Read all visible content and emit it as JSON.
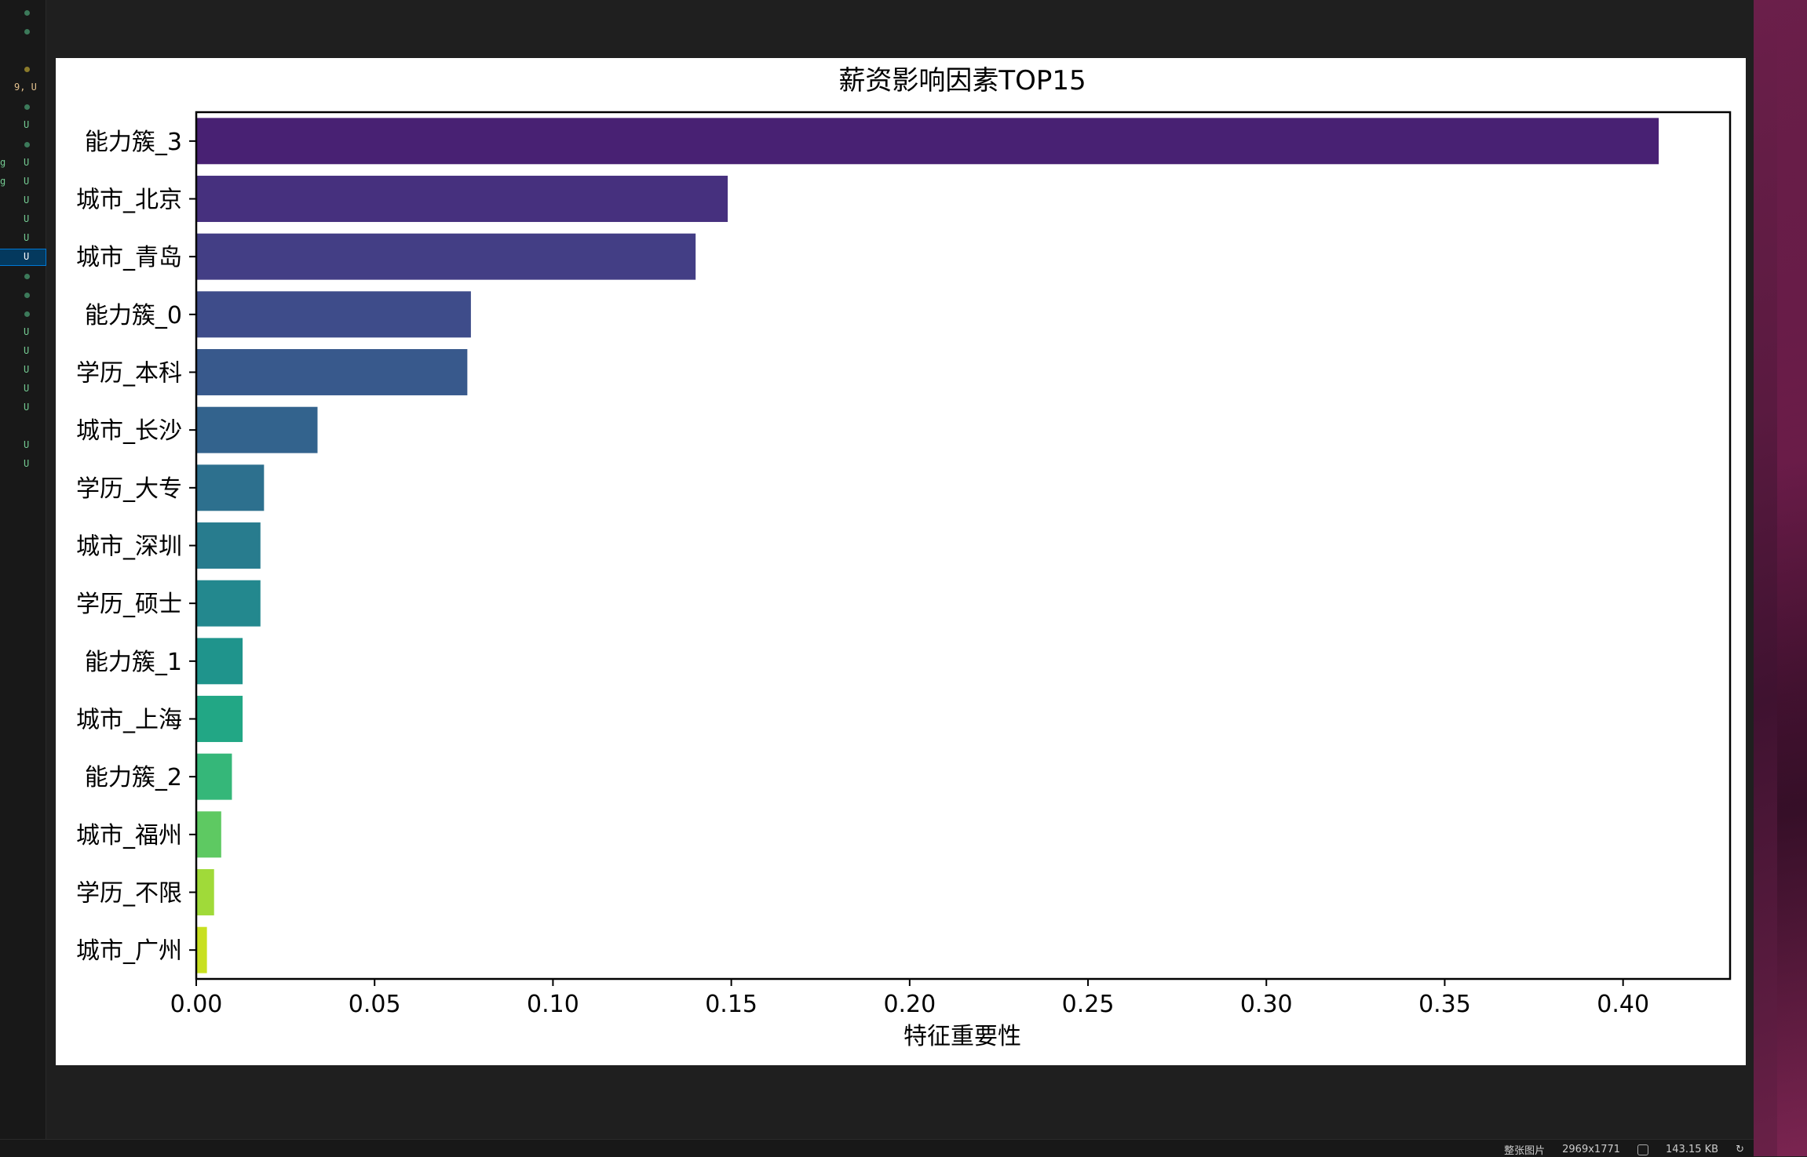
{
  "window": {
    "status_bar": {
      "view_mode": "整张图片",
      "dimensions": "2969x1771",
      "file_size": "143.15 KB"
    }
  },
  "colors": {
    "background": "#1f1f1f",
    "figure_background": "#ffffff",
    "palette": [
      "#482173",
      "#46307e",
      "#433e85",
      "#3e4c8a",
      "#38598c",
      "#33638d",
      "#2d708e",
      "#287c8e",
      "#23888e",
      "#1f948c",
      "#22a785",
      "#35b779",
      "#5ec962",
      "#a0da39",
      "#c8e020"
    ]
  },
  "chart_data": {
    "type": "bar",
    "orientation": "horizontal",
    "title": "薪资影响因素TOP15",
    "xlabel": "特征重要性",
    "ylabel": "",
    "categories": [
      "能力簇_3",
      "城市_北京",
      "城市_青岛",
      "能力簇_0",
      "学历_本科",
      "城市_长沙",
      "学历_大专",
      "城市_深圳",
      "学历_硕士",
      "能力簇_1",
      "城市_上海",
      "能力簇_2",
      "城市_福州",
      "学历_不限",
      "城市_广州"
    ],
    "values": [
      0.41,
      0.149,
      0.14,
      0.077,
      0.076,
      0.034,
      0.019,
      0.018,
      0.018,
      0.013,
      0.013,
      0.01,
      0.007,
      0.005,
      0.003
    ],
    "xlim": [
      0,
      0.43
    ],
    "xticks": [
      "0.00",
      "0.05",
      "0.10",
      "0.15",
      "0.20",
      "0.25",
      "0.30",
      "0.35",
      "0.40"
    ],
    "xtick_values": [
      0,
      0.05,
      0.1,
      0.15,
      0.2,
      0.25,
      0.3,
      0.35,
      0.4
    ],
    "grid": false,
    "legend": "none"
  }
}
